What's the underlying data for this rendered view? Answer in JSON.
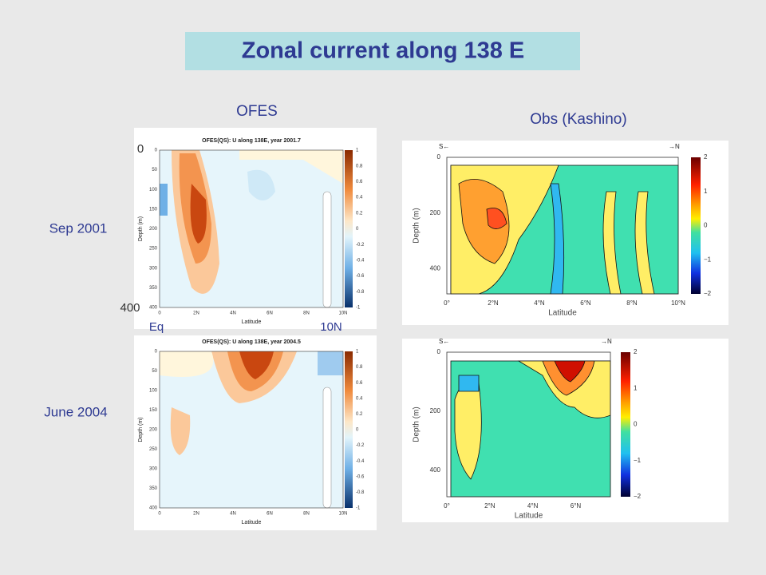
{
  "title": "Zonal current along 138 E",
  "column_labels": [
    "OFES",
    "Obs (Kashino)"
  ],
  "row_labels": [
    "Sep 2001",
    "June 2004"
  ],
  "annotations": {
    "depth_top": "0",
    "depth_bottom": "400",
    "lat_left": "Eq",
    "lat_right": "10N"
  },
  "ofes_panels": [
    {
      "title": "OFES(QS): U along 138E, year 2001.7",
      "xlabel": "Latitude",
      "ylabel": "Depth (m)",
      "xticks": [
        "0",
        "2N",
        "4N",
        "6N",
        "8N",
        "10N"
      ],
      "yticks": [
        "0",
        "50",
        "100",
        "150",
        "200",
        "250",
        "300",
        "350",
        "400"
      ],
      "colorbar": [
        "1",
        "0.8",
        "0.6",
        "0.4",
        "0.2",
        "0",
        "-0.2",
        "-0.4",
        "-0.6",
        "-0.8",
        "-1"
      ]
    },
    {
      "title": "OFES(QS): U along 138E, year 2004.5",
      "xlabel": "Latitude",
      "ylabel": "Depth (m)",
      "xticks": [
        "0",
        "2N",
        "4N",
        "6N",
        "8N",
        "10N"
      ],
      "yticks": [
        "0",
        "50",
        "100",
        "150",
        "200",
        "250",
        "300",
        "350",
        "400"
      ],
      "colorbar": [
        "1",
        "0.8",
        "0.6",
        "0.4",
        "0.2",
        "0",
        "-0.2",
        "-0.4",
        "-0.6",
        "-0.8",
        "-1"
      ]
    }
  ],
  "obs_panels": [
    {
      "left_header": "S←",
      "right_header": "→N",
      "xlabel": "Latitude",
      "ylabel": "Depth (m)",
      "xticks": [
        "0°",
        "2°N",
        "4°N",
        "6°N",
        "8°N",
        "10°N"
      ],
      "yticks": [
        "0",
        "200",
        "400"
      ],
      "colorbar": [
        "2",
        "1",
        "0",
        "−1",
        "−2"
      ]
    },
    {
      "left_header": "S←",
      "right_header": "→N",
      "xlabel": "Latitude",
      "ylabel": "Depth (m)",
      "xticks": [
        "0°",
        "2°N",
        "4°N",
        "6°N"
      ],
      "yticks": [
        "0",
        "200",
        "400"
      ],
      "colorbar": [
        "2",
        "1",
        "0",
        "−1",
        "−2"
      ]
    }
  ]
}
